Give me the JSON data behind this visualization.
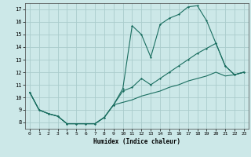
{
  "xlabel": "Humidex (Indice chaleur)",
  "bg_color": "#cce8e8",
  "grid_color": "#aacccc",
  "line_color": "#1a6e60",
  "xlim": [
    -0.5,
    23.5
  ],
  "ylim": [
    7.5,
    17.5
  ],
  "xticks": [
    0,
    1,
    2,
    3,
    4,
    5,
    6,
    7,
    8,
    9,
    10,
    11,
    12,
    13,
    14,
    15,
    16,
    17,
    18,
    19,
    20,
    21,
    22,
    23
  ],
  "yticks": [
    8,
    9,
    10,
    11,
    12,
    13,
    14,
    15,
    16,
    17
  ],
  "line1_x": [
    0,
    1,
    2,
    3,
    4,
    5,
    6,
    7,
    8,
    9,
    10,
    11,
    12,
    13,
    14,
    15,
    16,
    17,
    18,
    19,
    20,
    21,
    22,
    23
  ],
  "line1_y": [
    10.4,
    9.0,
    8.7,
    8.5,
    7.9,
    7.9,
    7.9,
    7.9,
    8.4,
    9.4,
    10.7,
    15.7,
    15.0,
    13.2,
    15.8,
    16.3,
    16.6,
    17.2,
    17.3,
    16.1,
    14.3,
    12.5,
    11.8,
    12.0
  ],
  "line2_x": [
    0,
    1,
    2,
    3,
    4,
    5,
    6,
    7,
    8,
    9,
    10,
    11,
    12,
    13,
    14,
    15,
    16,
    17,
    18,
    19,
    20,
    21,
    22,
    23
  ],
  "line2_y": [
    10.4,
    9.0,
    8.7,
    8.5,
    7.9,
    7.9,
    7.9,
    7.9,
    8.4,
    9.4,
    10.5,
    10.8,
    11.5,
    11.0,
    11.5,
    12.0,
    12.5,
    13.0,
    13.5,
    13.9,
    14.3,
    12.5,
    11.8,
    12.0
  ],
  "line3_x": [
    0,
    1,
    2,
    3,
    4,
    5,
    6,
    7,
    8,
    9,
    10,
    11,
    12,
    13,
    14,
    15,
    16,
    17,
    18,
    19,
    20,
    21,
    22,
    23
  ],
  "line3_y": [
    10.4,
    9.0,
    8.7,
    8.5,
    7.9,
    7.9,
    7.9,
    7.9,
    8.4,
    9.4,
    9.6,
    9.8,
    10.1,
    10.3,
    10.5,
    10.8,
    11.0,
    11.3,
    11.5,
    11.7,
    12.0,
    11.7,
    11.8,
    12.0
  ]
}
